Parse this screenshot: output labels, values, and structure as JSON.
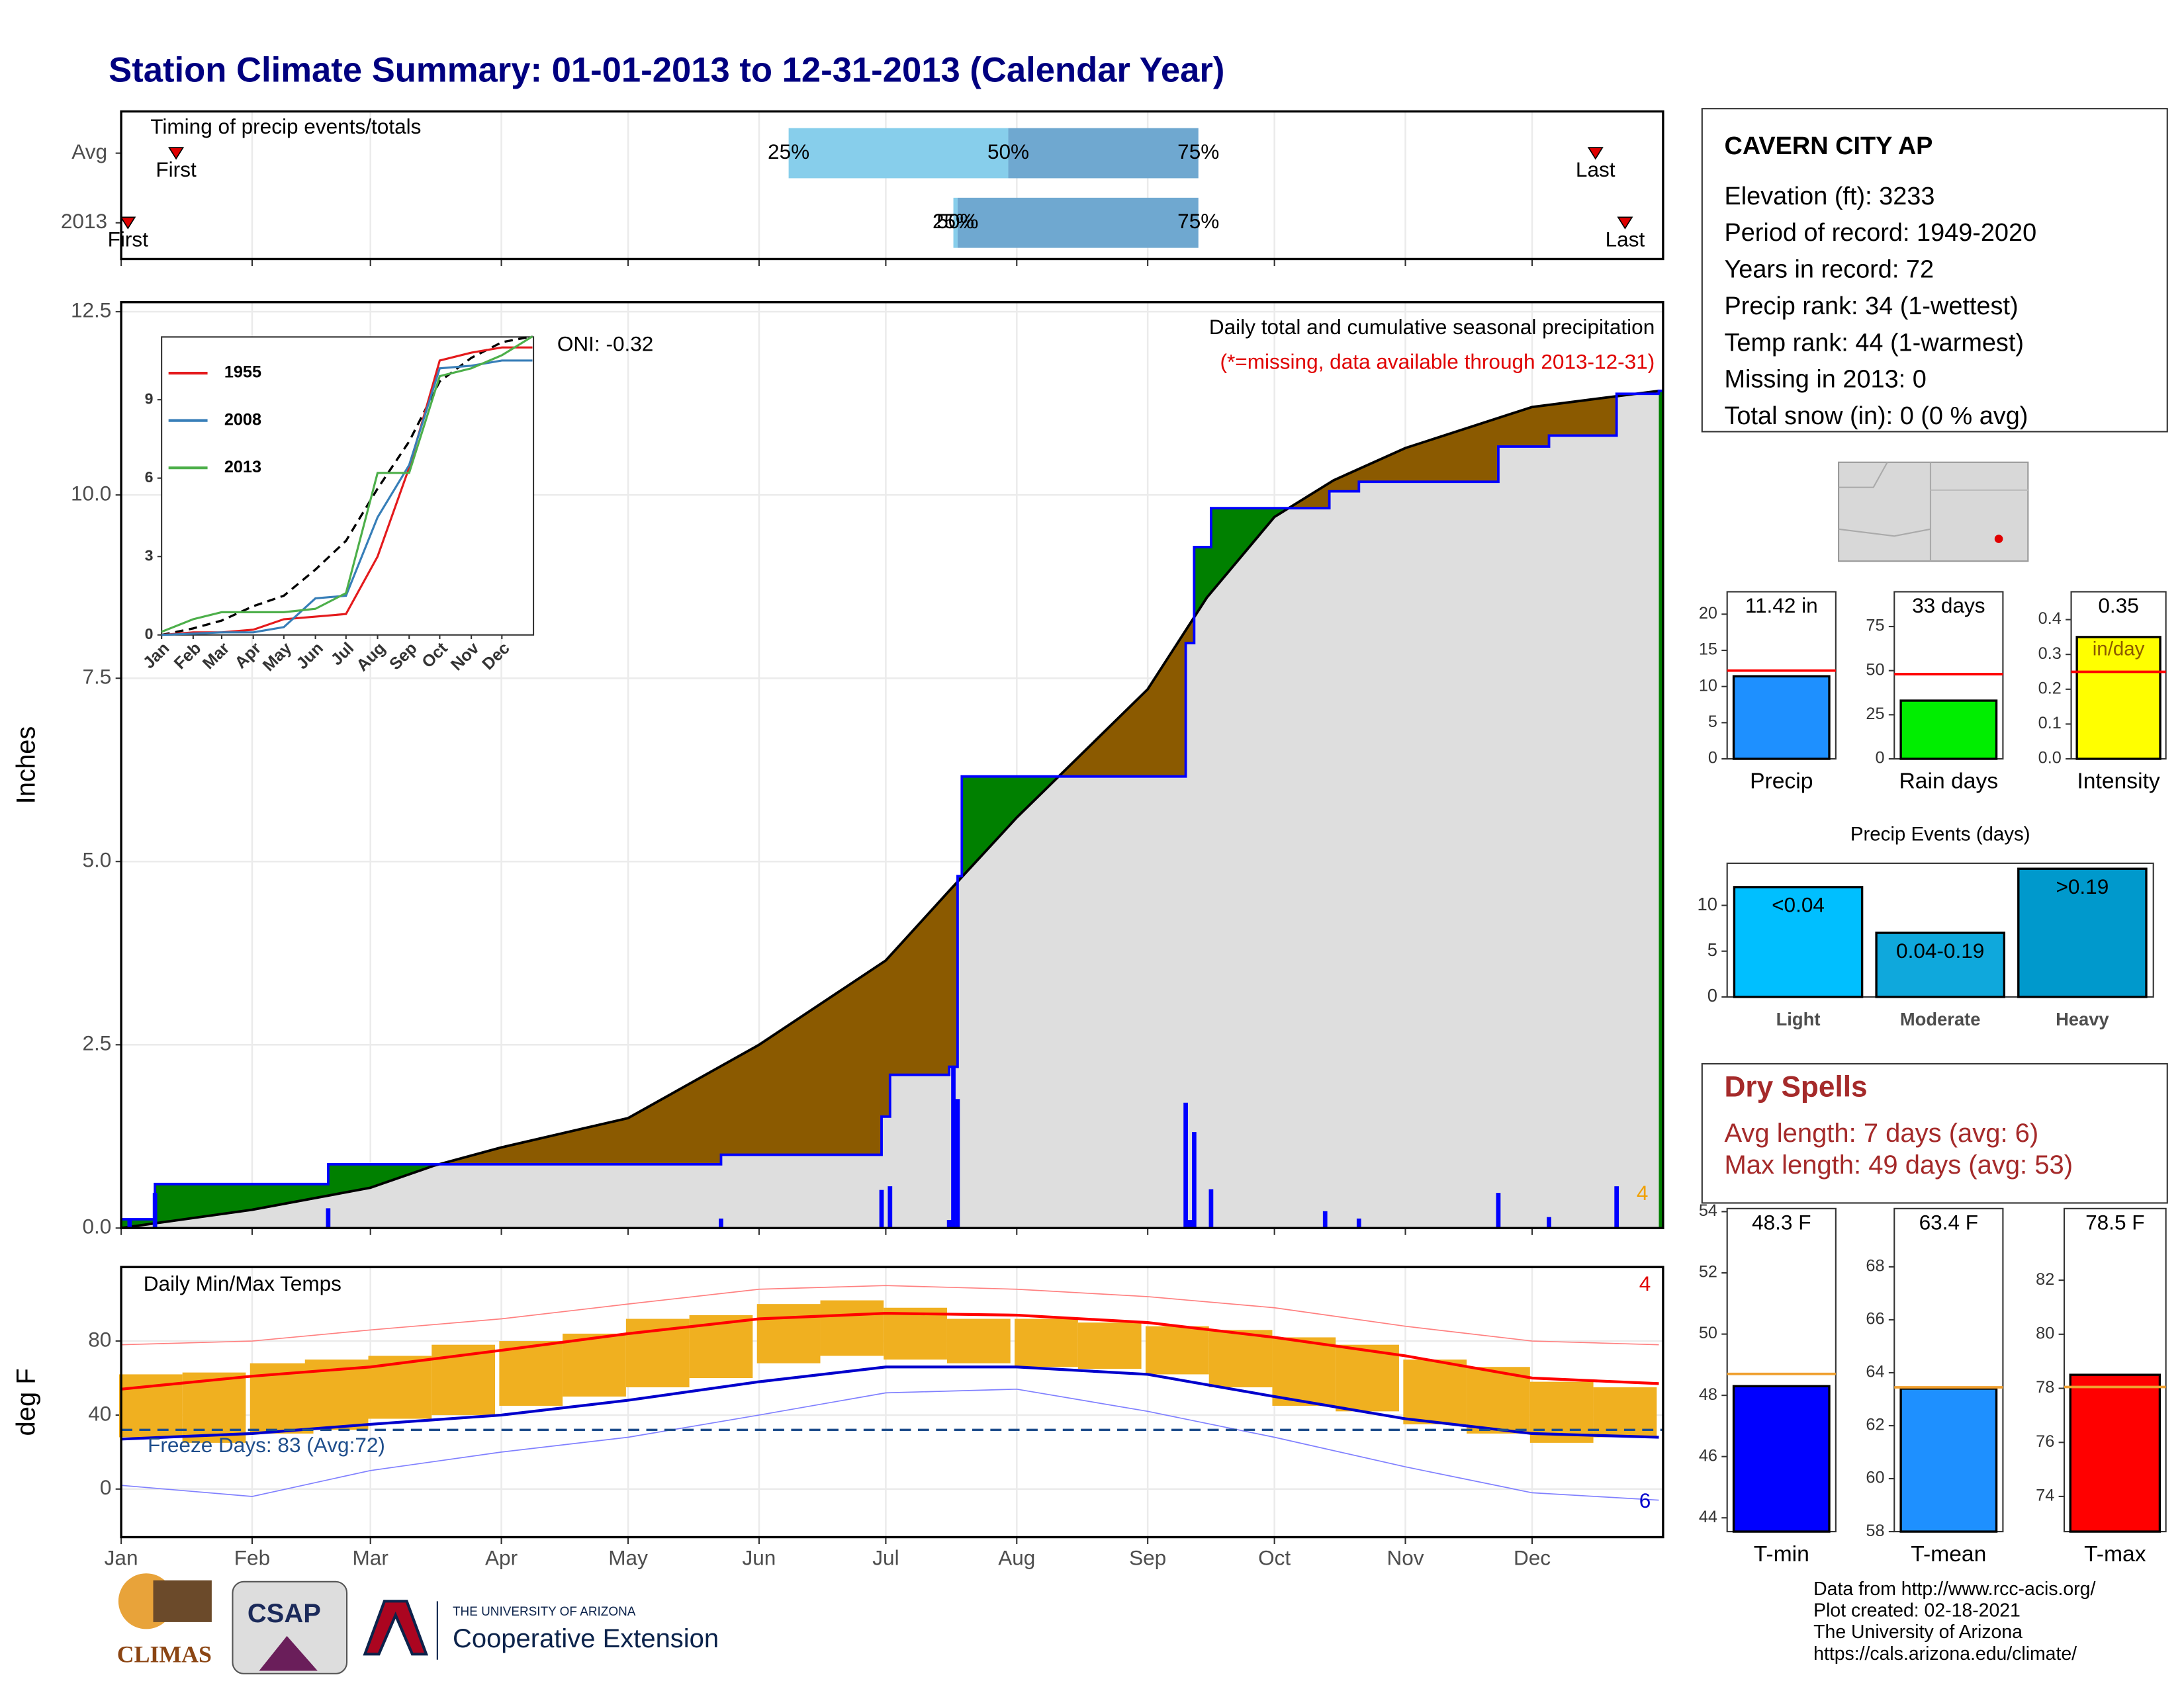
{
  "title": "Station Climate Summary: 01-01-2013 to 12-31-2013 (Calendar Year)",
  "station": {
    "name": "CAVERN CITY AP",
    "lines": [
      "Elevation (ft): 3233",
      "Period of record: 1949-2020",
      "Years in record: 72",
      "Precip rank: 34 (1-wettest)",
      "Temp rank: 44 (1-warmest)",
      "Missing in 2013: 0",
      "Total snow (in): 0 (0 % avg)"
    ]
  },
  "dry_spells": {
    "title": "Dry Spells",
    "lines": [
      "Avg length: 7 days (avg: 6)",
      "Max length: 49 days (avg: 53)"
    ]
  },
  "footer": [
    "Data from http://www.rcc-acis.org/",
    "Plot created: 02-18-2021",
    "The University of Arizona",
    "https://cals.arizona.edu/climate/"
  ],
  "logos": {
    "climas": "CLIMAS",
    "csap": "CSAP",
    "ua": "THE UNIVERSITY OF ARIZONA",
    "extension": "Cooperative Extension"
  },
  "chart_data": [
    {
      "type": "timing",
      "title": "Timing of precip events/totals",
      "xlim": [
        1,
        366
      ],
      "rows": [
        {
          "name": "Avg",
          "markers": [
            {
              "label": "First",
              "x": 14
            },
            {
              "label": "25%",
              "x": 159
            },
            {
              "label": "50%",
              "x": 211
            },
            {
              "label": "75%",
              "x": 256
            },
            {
              "label": "Last",
              "x": 350
            }
          ]
        },
        {
          "name": "2013",
          "markers": [
            {
              "label": "First",
              "x": 2.6
            },
            {
              "label": "25%",
              "x": 198
            },
            {
              "label": "50%",
              "x": 199
            },
            {
              "label": "75%",
              "x": 256
            },
            {
              "label": "Last",
              "x": 357
            }
          ]
        }
      ],
      "colors": [
        "#87ceeb",
        "#6fa8d0"
      ],
      "marker_color": "#e00000"
    },
    {
      "type": "cumulative-precip",
      "title": "Daily total and cumulative seasonal precipitation",
      "subtitle": "(*=missing, data available through 2013-12-31)",
      "annotation": "ONI: -0.32",
      "count_label": "4",
      "ylabel": "Inches",
      "xlim": [
        1,
        366
      ],
      "ylim": [
        0,
        12.63
      ],
      "yticks": [
        {
          "value": 0,
          "label": "0.0"
        },
        2.5,
        {
          "value": 5,
          "label": "5.0"
        },
        7.5,
        {
          "value": 10,
          "label": "10.0"
        },
        12.5
      ],
      "observed": {
        "name": "2013",
        "color": "#0000ff",
        "x": [
          1,
          9,
          50,
          143,
          181,
          183,
          197,
          199,
          200,
          253,
          255,
          259,
          287,
          294,
          327,
          339,
          355,
          365
        ],
        "values": [
          0.12,
          0.6,
          0.87,
          1.0,
          1.52,
          2.09,
          2.2,
          4.8,
          6.16,
          7.98,
          9.29,
          9.82,
          10.05,
          10.18,
          10.66,
          10.81,
          11.38,
          11.42
        ]
      },
      "average": {
        "color": "#000000",
        "x": [
          1,
          32,
          60,
          75,
          91,
          121,
          152,
          182,
          197,
          213,
          244,
          258,
          274,
          288,
          305,
          335,
          365
        ],
        "values": [
          0,
          0.25,
          0.55,
          0.85,
          1.1,
          1.5,
          2.5,
          3.65,
          4.6,
          5.6,
          7.35,
          8.6,
          9.7,
          10.2,
          10.64,
          11.2,
          11.42
        ]
      },
      "daily": {
        "color": "#0000ff",
        "x": [
          3,
          9,
          50,
          143,
          181,
          183,
          197,
          198,
          199,
          253,
          254,
          255,
          259,
          286,
          294,
          327,
          339,
          355
        ],
        "values": [
          0.12,
          0.48,
          0.27,
          0.13,
          0.52,
          0.57,
          0.11,
          2.2,
          1.76,
          1.71,
          0.11,
          1.31,
          0.53,
          0.23,
          0.13,
          0.48,
          0.15,
          0.57
        ]
      },
      "above_color": "#008000",
      "below_color": "#8b5a00",
      "base_color": "#dedede"
    },
    {
      "type": "line",
      "xlim": [
        1,
        366
      ],
      "ylim": [
        0,
        11.4
      ],
      "yticks": [
        0,
        3,
        6,
        9
      ],
      "xticks": [
        {
          "value": 1,
          "label": "Jan"
        },
        {
          "value": 32,
          "label": "Feb"
        },
        {
          "value": 60,
          "label": "Mar"
        },
        {
          "value": 91,
          "label": "Apr"
        },
        {
          "value": 121,
          "label": "May"
        },
        {
          "value": 152,
          "label": "Jun"
        },
        {
          "value": 182,
          "label": "Jul"
        },
        {
          "value": 213,
          "label": "Aug"
        },
        {
          "value": 244,
          "label": "Sep"
        },
        {
          "value": 274,
          "label": "Oct"
        },
        {
          "value": 305,
          "label": "Nov"
        },
        {
          "value": 335,
          "label": "Dec"
        }
      ],
      "x": [
        1,
        32,
        60,
        91,
        121,
        152,
        182,
        213,
        244,
        274,
        305,
        335,
        365
      ],
      "series": [
        {
          "name": "1955",
          "color": "#e41a1c",
          "values": [
            0,
            0.1,
            0.1,
            0.2,
            0.6,
            0.7,
            0.8,
            3.0,
            6.4,
            10.5,
            10.8,
            11.0,
            11.0
          ]
        },
        {
          "name": "2008",
          "color": "#377eb8",
          "values": [
            0,
            0.05,
            0.1,
            0.1,
            0.3,
            1.4,
            1.5,
            4.5,
            6.5,
            10.2,
            10.3,
            10.5,
            10.5
          ]
        },
        {
          "name": "2013",
          "color": "#4daf4a",
          "values": [
            0.12,
            0.6,
            0.87,
            0.87,
            0.87,
            1.0,
            1.6,
            6.2,
            6.2,
            9.9,
            10.2,
            10.7,
            11.42
          ]
        }
      ],
      "average": {
        "color": "#000000",
        "values": [
          0,
          0.25,
          0.55,
          1.1,
          1.5,
          2.5,
          3.6,
          5.6,
          7.4,
          9.7,
          10.6,
          11.2,
          11.42
        ]
      }
    },
    {
      "type": "temperature",
      "title": "Daily Min/Max Temps",
      "ylabel": "deg F",
      "annotation": "Freeze Days: 83 (Avg:72)",
      "max_count": "4",
      "min_count": "6",
      "xlim": [
        1,
        366
      ],
      "ylim": [
        -26,
        120
      ],
      "yticks": [
        0,
        40,
        80
      ],
      "freeze": 32,
      "xticks": [
        {
          "value": 1,
          "label": "Jan"
        },
        {
          "value": 32,
          "label": "Feb"
        },
        {
          "value": 60,
          "label": "Mar"
        },
        {
          "value": 91,
          "label": "Apr"
        },
        {
          "value": 121,
          "label": "May"
        },
        {
          "value": 152,
          "label": "Jun"
        },
        {
          "value": 182,
          "label": "Jul"
        },
        {
          "value": 213,
          "label": "Aug"
        },
        {
          "value": 244,
          "label": "Sep"
        },
        {
          "value": 274,
          "label": "Oct"
        },
        {
          "value": 305,
          "label": "Nov"
        },
        {
          "value": 335,
          "label": "Dec"
        }
      ],
      "ranges": {
        "color": "#f0b020",
        "x": [
          8,
          23,
          39,
          52,
          67,
          82,
          98,
          113,
          128,
          143,
          159,
          174,
          189,
          204,
          220,
          235,
          251,
          266,
          281,
          296,
          312,
          327,
          342,
          357
        ],
        "max": [
          62,
          63,
          68,
          70,
          72,
          78,
          80,
          84,
          92,
          94,
          100,
          102,
          98,
          92,
          92,
          90,
          88,
          86,
          82,
          78,
          70,
          66,
          58,
          55
        ],
        "min": [
          28,
          25,
          30,
          32,
          38,
          40,
          45,
          50,
          55,
          60,
          68,
          72,
          70,
          68,
          66,
          65,
          62,
          55,
          45,
          42,
          35,
          30,
          25,
          28
        ]
      },
      "x": [
        1,
        32,
        60,
        91,
        121,
        152,
        182,
        213,
        244,
        274,
        305,
        335,
        365
      ],
      "avg_max": {
        "color": "#ff0000",
        "values": [
          54,
          61,
          66,
          75,
          84,
          92,
          95,
          94,
          90,
          82,
          72,
          60,
          57
        ]
      },
      "avg_min": {
        "color": "#0000cc",
        "values": [
          27,
          30,
          35,
          40,
          48,
          58,
          66,
          66,
          62,
          50,
          38,
          30,
          28
        ]
      },
      "record_max": {
        "color": "#ff8080",
        "values": [
          78,
          80,
          86,
          92,
          100,
          108,
          110,
          108,
          104,
          98,
          88,
          80,
          78
        ]
      },
      "record_min": {
        "color": "#8080ff",
        "values": [
          2,
          -4,
          10,
          20,
          28,
          40,
          52,
          54,
          42,
          28,
          12,
          -2,
          -6
        ]
      }
    },
    {
      "type": "bar",
      "categories": [
        "Precip"
      ],
      "values": [
        11.42
      ],
      "value_labels": [
        "11.42 in"
      ],
      "average": 12.2,
      "avg_color": "#ff0000",
      "color": "#1e90ff",
      "ylim": [
        0,
        23.1
      ],
      "yticks": [
        0,
        5,
        10,
        15,
        20
      ]
    },
    {
      "type": "bar",
      "categories": [
        "Rain days"
      ],
      "values": [
        33
      ],
      "value_labels": [
        "33 days"
      ],
      "average": 48,
      "avg_color": "#ff0000",
      "color": "#00ee00",
      "ylim": [
        0,
        94.7
      ],
      "yticks": [
        0,
        25,
        50,
        75
      ]
    },
    {
      "type": "bar",
      "categories": [
        "Intensity"
      ],
      "values": [
        0.35
      ],
      "unit_label": "in/day",
      "average": 0.25,
      "avg_color": "#ff0000",
      "color": "#ffff00",
      "ylim": [
        0,
        0.48
      ],
      "yticks": [
        {
          "value": 0,
          "label": "0.0"
        },
        0.1,
        0.2,
        0.3,
        0.4
      ]
    },
    {
      "type": "bar",
      "title": "Precip Events (days)",
      "categories": [
        "Light",
        "Moderate",
        "Heavy"
      ],
      "ranges": [
        "<0.04",
        "0.04-0.19",
        ">0.19"
      ],
      "values": [
        12,
        7,
        14
      ],
      "colors": [
        "#00bfff",
        "#0fa8dc",
        "#0099cc"
      ],
      "ylim": [
        0,
        14.6
      ],
      "yticks": [
        0,
        5,
        10
      ]
    },
    {
      "type": "bar",
      "categories": [
        "T-min"
      ],
      "values": [
        48.3
      ],
      "value_labels": [
        "48.3 F"
      ],
      "average": 48.7,
      "avg_color": "#f0a030",
      "color": "#0000ff",
      "ylim": [
        43.55,
        54.1
      ],
      "yticks": [
        44,
        46,
        48,
        50,
        52,
        54
      ]
    },
    {
      "type": "bar",
      "categories": [
        "T-mean"
      ],
      "values": [
        63.4
      ],
      "value_labels": [
        "63.4 F"
      ],
      "average": 63.45,
      "avg_color": "#f0a030",
      "color": "#1e90ff",
      "ylim": [
        58,
        70.2
      ],
      "yticks": [
        58,
        60,
        62,
        64,
        66,
        68
      ]
    },
    {
      "type": "bar",
      "categories": [
        "T-max"
      ],
      "values": [
        78.5
      ],
      "value_labels": [
        "78.5 F"
      ],
      "average": 78.05,
      "avg_color": "#f0a030",
      "color": "#ff0000",
      "ylim": [
        72.7,
        84.65
      ],
      "yticks": [
        74,
        76,
        78,
        80,
        82
      ]
    }
  ]
}
